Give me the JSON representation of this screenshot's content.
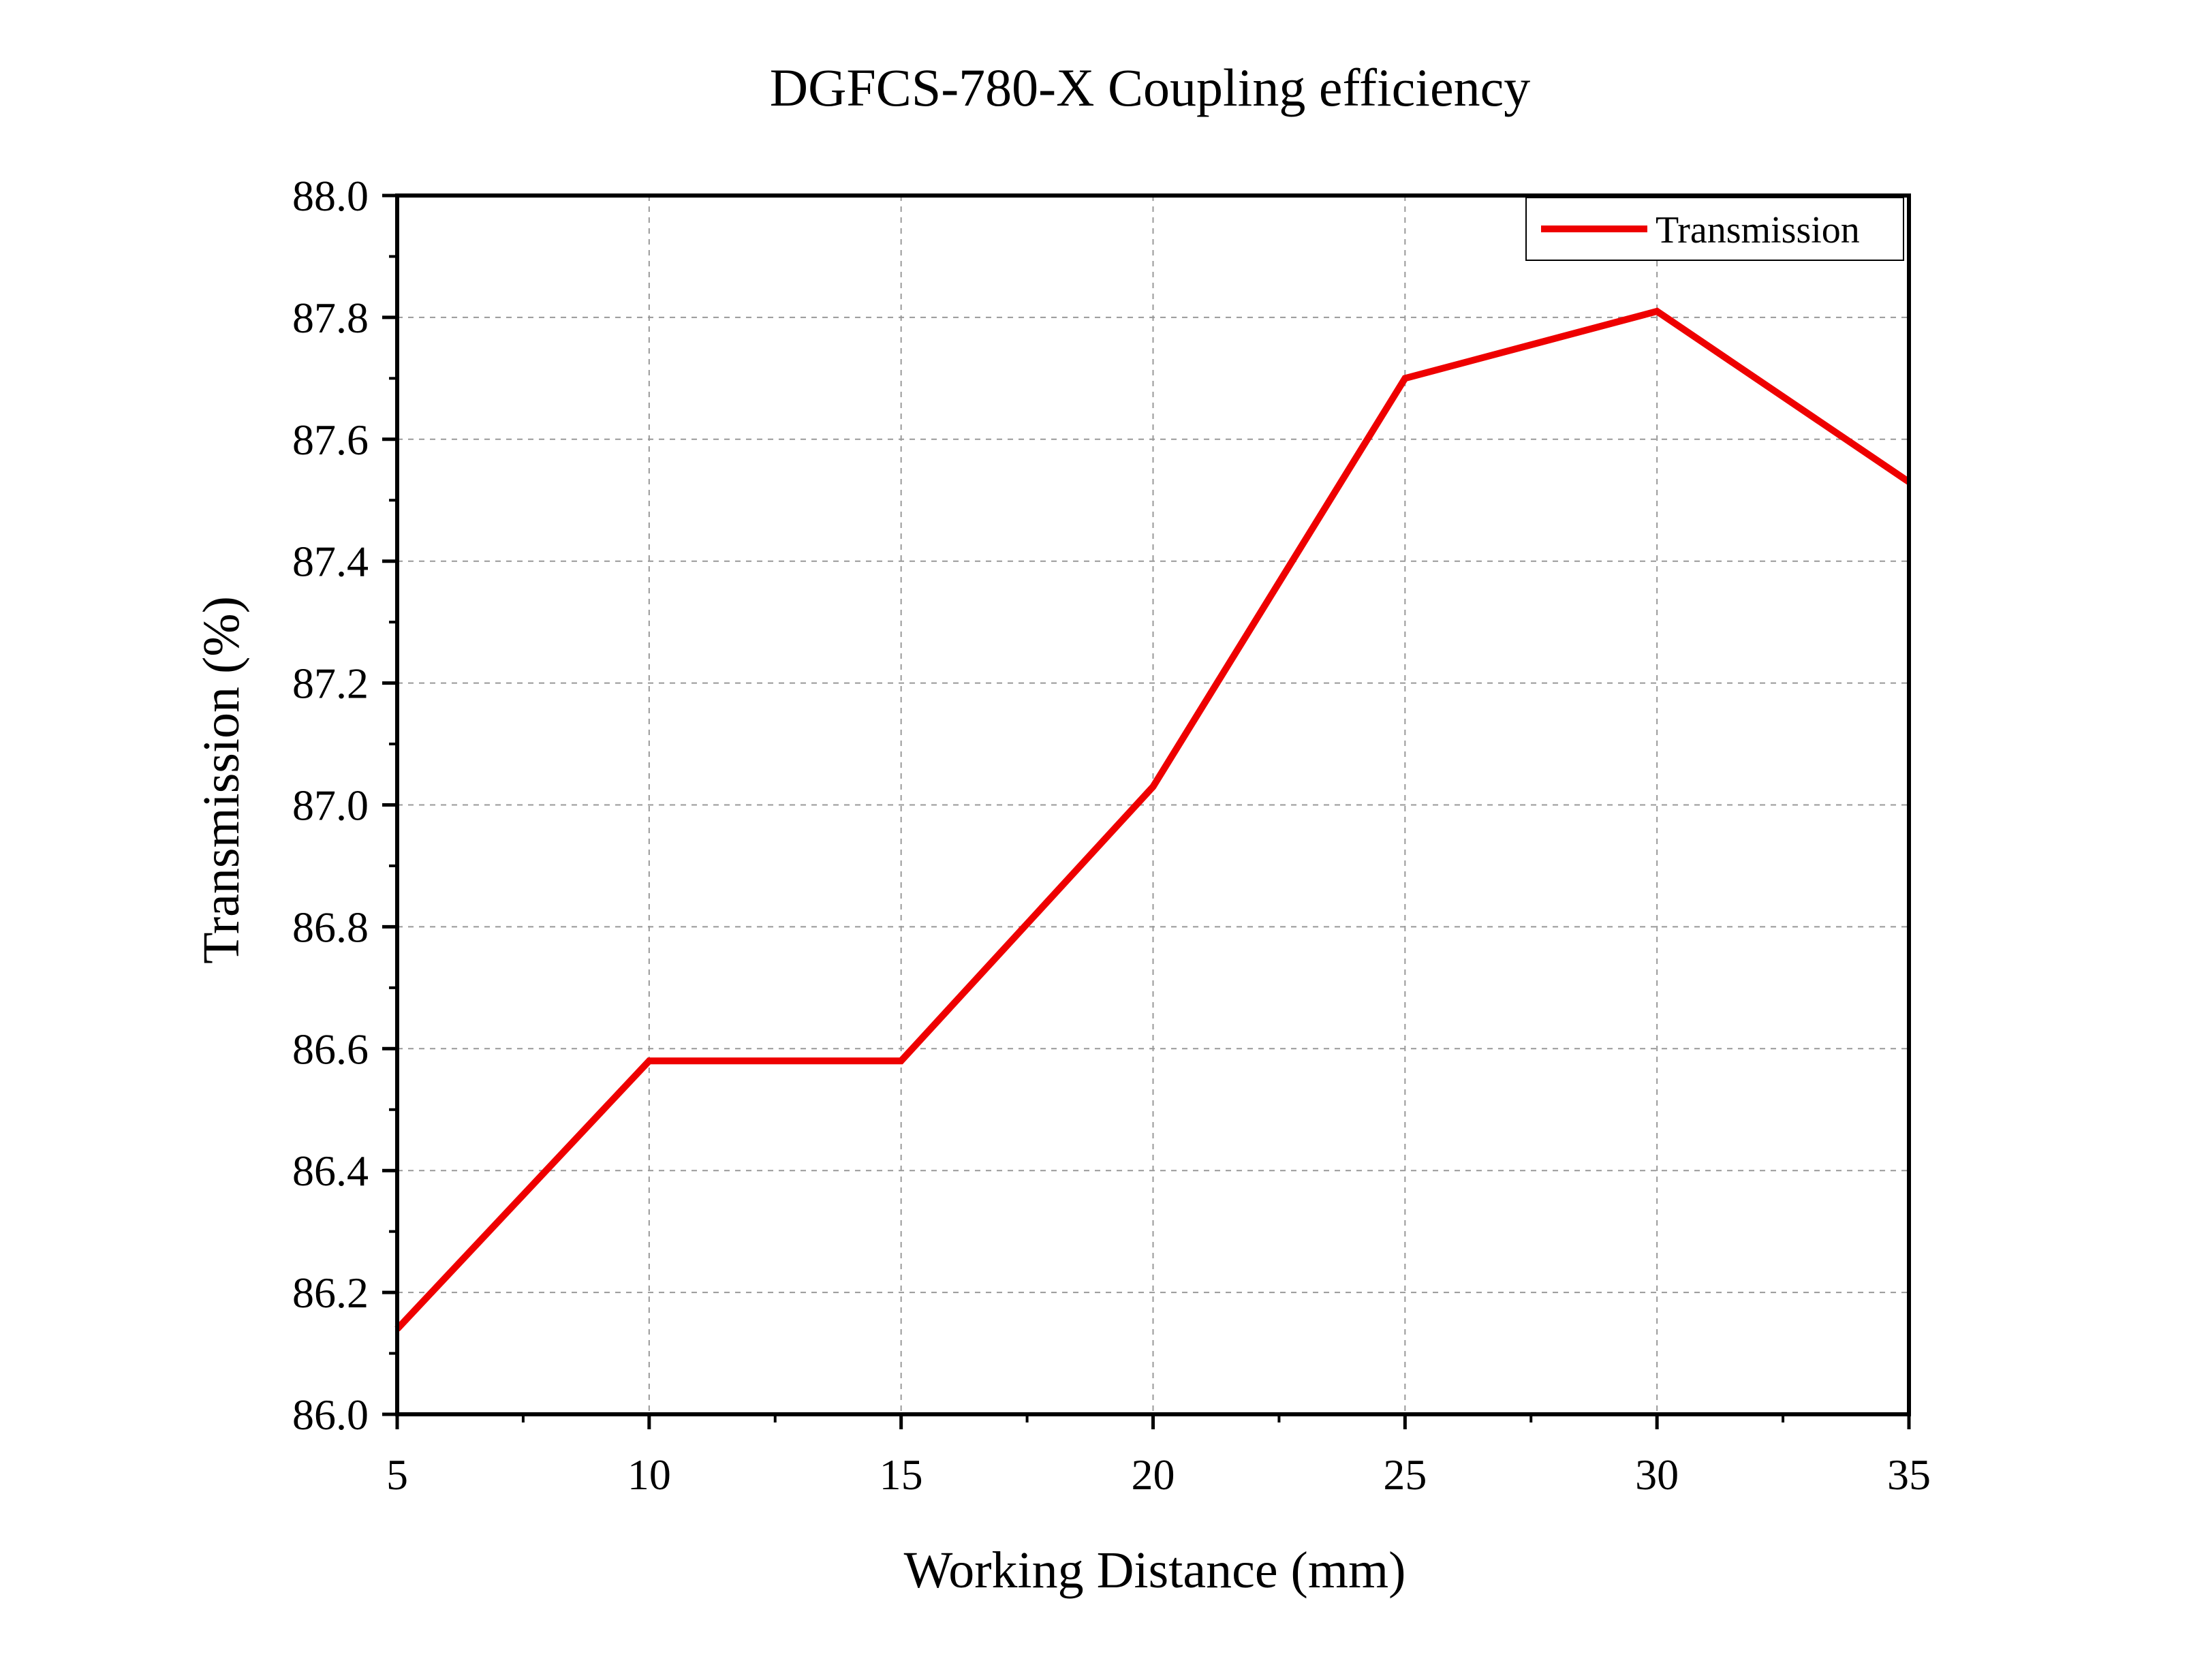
{
  "chart_data": {
    "type": "line",
    "title": "DGFCS-780-X Coupling efficiency",
    "xlabel": "Working Distance (mm)",
    "ylabel": "Transmission (%)",
    "xlim": [
      5,
      35
    ],
    "ylim": [
      86.0,
      88.0
    ],
    "xticks": [
      "5",
      "10",
      "15",
      "20",
      "25",
      "30",
      "35"
    ],
    "yticks": [
      "86.0",
      "86.2",
      "86.4",
      "86.6",
      "86.8",
      "87.0",
      "87.2",
      "87.4",
      "87.6",
      "87.8",
      "88.0"
    ],
    "grid": true,
    "legend": "top-right",
    "series": [
      {
        "name": "Transmission",
        "color": "#ee0000",
        "x": [
          5,
          10,
          15,
          20,
          25,
          30,
          35
        ],
        "y": [
          86.14,
          86.58,
          86.58,
          87.03,
          87.7,
          87.81,
          87.53
        ]
      }
    ]
  }
}
